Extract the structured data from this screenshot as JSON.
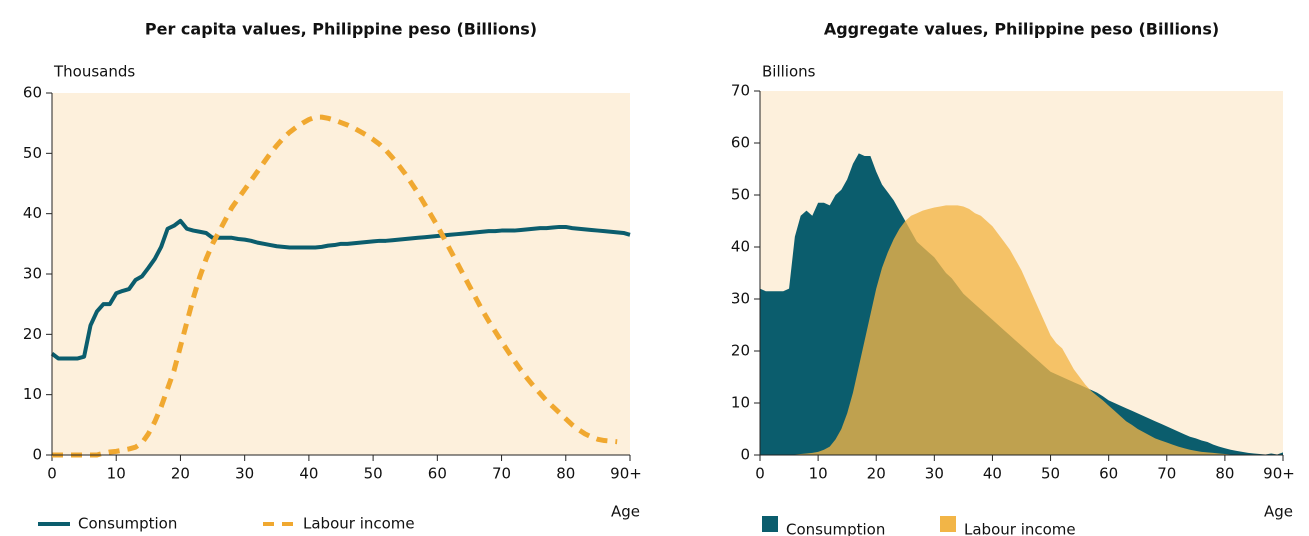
{
  "chart_data": [
    {
      "type": "line",
      "title": "Per capita values, Philippine peso (Billions)",
      "y_label": "Thousands",
      "x_label": "Age",
      "x": [
        0,
        1,
        2,
        3,
        4,
        5,
        6,
        7,
        8,
        9,
        10,
        11,
        12,
        13,
        14,
        15,
        16,
        17,
        18,
        19,
        20,
        21,
        22,
        23,
        24,
        25,
        26,
        27,
        28,
        29,
        30,
        31,
        32,
        33,
        34,
        35,
        36,
        37,
        38,
        39,
        40,
        41,
        42,
        43,
        44,
        45,
        46,
        47,
        48,
        49,
        50,
        51,
        52,
        53,
        54,
        55,
        56,
        57,
        58,
        59,
        60,
        61,
        62,
        63,
        64,
        65,
        66,
        67,
        68,
        69,
        70,
        71,
        72,
        73,
        74,
        75,
        76,
        77,
        78,
        79,
        80,
        81,
        82,
        83,
        84,
        85,
        86,
        87,
        88,
        89,
        90
      ],
      "xlim": [
        0,
        90
      ],
      "xticks": [
        0,
        10,
        20,
        30,
        40,
        50,
        60,
        70,
        80,
        {
          "value": 90,
          "label": "90+"
        }
      ],
      "ylim": [
        0,
        60
      ],
      "yticks": [
        0,
        10,
        20,
        30,
        40,
        50,
        60
      ],
      "series": [
        {
          "name": "Consumption",
          "color": "#0b5d6d",
          "dashed": false,
          "values": [
            16.8,
            16,
            16,
            16,
            16,
            16.3,
            21.5,
            23.8,
            25,
            25,
            26.8,
            27.2,
            27.5,
            29,
            29.6,
            31,
            32.5,
            34.5,
            37.5,
            38,
            38.8,
            37.5,
            37.2,
            37,
            36.8,
            36,
            36,
            36,
            36,
            35.8,
            35.7,
            35.5,
            35.2,
            35,
            34.8,
            34.6,
            34.5,
            34.4,
            34.4,
            34.4,
            34.4,
            34.4,
            34.5,
            34.7,
            34.8,
            35,
            35,
            35.1,
            35.2,
            35.3,
            35.4,
            35.5,
            35.5,
            35.6,
            35.7,
            35.8,
            35.9,
            36,
            36.1,
            36.2,
            36.3,
            36.4,
            36.5,
            36.6,
            36.7,
            36.8,
            36.9,
            37,
            37.1,
            37.1,
            37.2,
            37.2,
            37.2,
            37.3,
            37.4,
            37.5,
            37.6,
            37.6,
            37.7,
            37.8,
            37.8,
            37.6,
            37.5,
            37.4,
            37.3,
            37.2,
            37.1,
            37,
            36.9,
            36.8,
            36.5
          ]
        },
        {
          "name": "Labour income",
          "color": "#f0a830",
          "dashed": true,
          "values": [
            0,
            0,
            0,
            0,
            0,
            0,
            0,
            0,
            0.3,
            0.5,
            0.6,
            0.8,
            1,
            1.3,
            2,
            3.5,
            5.5,
            8,
            11,
            14,
            18,
            22,
            26,
            29.5,
            32.5,
            35,
            37,
            39,
            41,
            42.5,
            44,
            45.5,
            47,
            48.5,
            50,
            51.3,
            52.5,
            53.5,
            54.3,
            55,
            55.6,
            56,
            56,
            55.8,
            55.5,
            55.1,
            54.7,
            54.2,
            53.6,
            53,
            52.3,
            51.5,
            50.5,
            49.3,
            48,
            46.6,
            45,
            43.4,
            41.6,
            39.8,
            38,
            36,
            34,
            32,
            30,
            28,
            26,
            24,
            22.2,
            20.5,
            18.8,
            17.2,
            15.6,
            14.1,
            12.7,
            11.4,
            10.2,
            9,
            8,
            7,
            6,
            5,
            4.2,
            3.5,
            3,
            2.6,
            2.4,
            2.3,
            2.2,
            null,
            null
          ]
        }
      ]
    },
    {
      "type": "area",
      "title": "Aggregate values, Philippine peso (Billions)",
      "y_label": "Billions",
      "x_label": "Age",
      "x": [
        0,
        1,
        2,
        3,
        4,
        5,
        6,
        7,
        8,
        9,
        10,
        11,
        12,
        13,
        14,
        15,
        16,
        17,
        18,
        19,
        20,
        21,
        22,
        23,
        24,
        25,
        26,
        27,
        28,
        29,
        30,
        31,
        32,
        33,
        34,
        35,
        36,
        37,
        38,
        39,
        40,
        41,
        42,
        43,
        44,
        45,
        46,
        47,
        48,
        49,
        50,
        51,
        52,
        53,
        54,
        55,
        56,
        57,
        58,
        59,
        60,
        61,
        62,
        63,
        64,
        65,
        66,
        67,
        68,
        69,
        70,
        71,
        72,
        73,
        74,
        75,
        76,
        77,
        78,
        79,
        80,
        81,
        82,
        83,
        84,
        85,
        86,
        87,
        88,
        89,
        90
      ],
      "xlim": [
        0,
        90
      ],
      "xticks": [
        0,
        10,
        20,
        30,
        40,
        50,
        60,
        70,
        80,
        {
          "value": 90,
          "label": "90+"
        }
      ],
      "ylim": [
        0,
        70
      ],
      "yticks": [
        0,
        10,
        20,
        30,
        40,
        50,
        60,
        70
      ],
      "series": [
        {
          "name": "Consumption",
          "color": "#0b5d6d",
          "values": [
            32,
            31.5,
            31.5,
            31.5,
            31.5,
            32,
            42,
            46,
            47,
            46,
            48.5,
            48.5,
            48,
            50,
            51,
            53,
            56,
            58,
            57.5,
            57.5,
            54.5,
            52,
            50.5,
            49,
            47,
            45,
            43,
            41,
            40,
            39,
            38,
            36.5,
            35,
            34,
            32.5,
            31,
            30,
            29,
            28,
            27,
            26,
            25,
            24,
            23,
            22,
            21,
            20,
            19,
            18,
            17,
            16,
            15.5,
            15,
            14.5,
            14,
            13.5,
            13,
            12.5,
            12,
            11.3,
            10.5,
            10,
            9.5,
            9,
            8.5,
            8,
            7.5,
            7,
            6.5,
            6,
            5.5,
            5,
            4.5,
            4,
            3.5,
            3.2,
            2.8,
            2.5,
            2,
            1.6,
            1.3,
            1,
            0.8,
            0.6,
            0.4,
            0.3,
            0.2,
            0.1,
            0.3,
            0.1,
            0.5
          ]
        },
        {
          "name": "Labour income",
          "color": "#f2b547",
          "values": [
            0,
            0,
            0,
            0,
            0,
            0,
            0.1,
            0.2,
            0.3,
            0.4,
            0.6,
            1,
            1.6,
            3,
            5,
            8,
            12,
            17,
            22,
            27,
            32,
            36,
            39,
            41.5,
            43.5,
            45,
            46,
            46.5,
            47,
            47.3,
            47.6,
            47.8,
            48,
            48,
            48,
            47.8,
            47.3,
            46.5,
            46,
            45,
            44,
            42.5,
            41,
            39.5,
            37.5,
            35.5,
            33,
            30.5,
            28,
            25.5,
            23,
            21.5,
            20.5,
            18.5,
            16.5,
            15,
            13.5,
            12.3,
            11.4,
            10.5,
            9.5,
            8.5,
            7.5,
            6.5,
            5.8,
            5,
            4.4,
            3.8,
            3.2,
            2.8,
            2.4,
            2,
            1.6,
            1.3,
            1,
            0.8,
            0.6,
            0.5,
            0.4,
            0.3,
            0.2,
            0.1,
            0,
            0,
            0,
            0,
            0,
            0,
            0,
            0,
            0
          ]
        }
      ]
    }
  ]
}
